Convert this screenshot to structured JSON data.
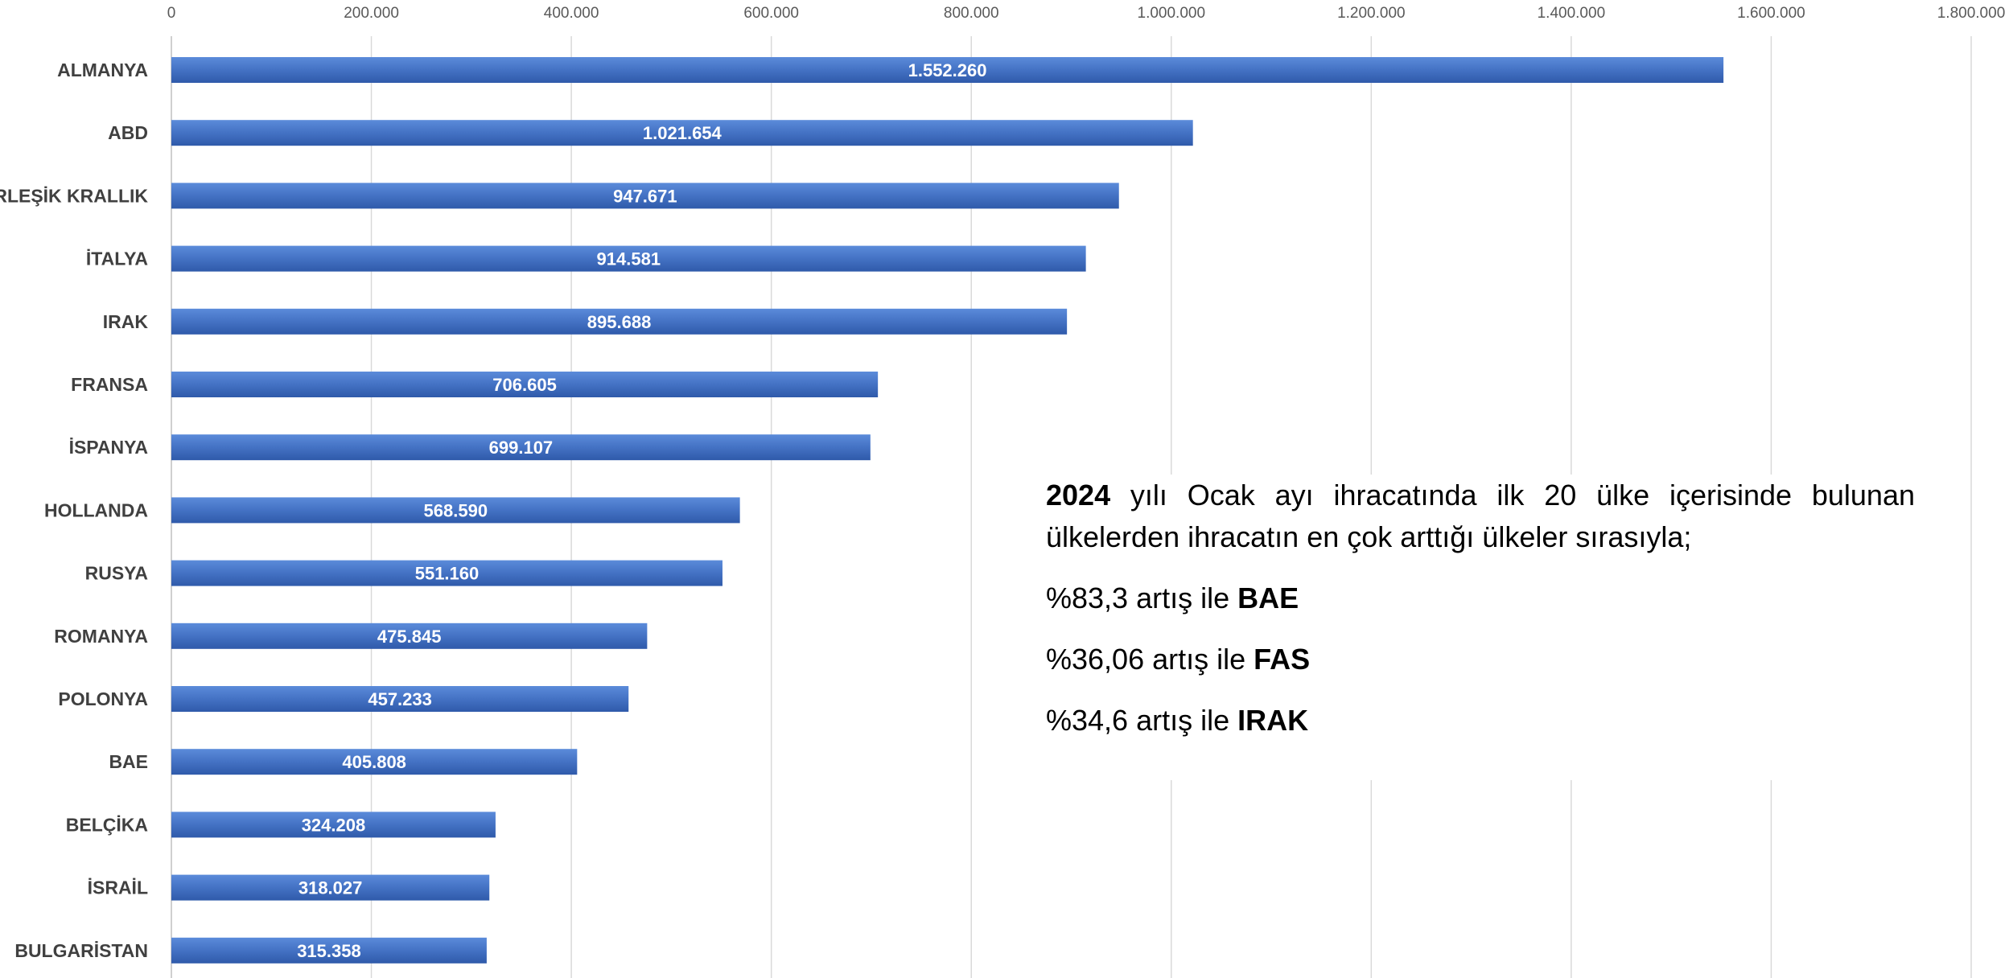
{
  "chart_data": {
    "type": "bar",
    "orientation": "horizontal",
    "categories": [
      "ALMANYA",
      "ABD",
      "BİRLEŞİK KRALLIK",
      "İTALYA",
      "IRAK",
      "FRANSA",
      "İSPANYA",
      "HOLLANDA",
      "RUSYA",
      "ROMANYA",
      "POLONYA",
      "BAE",
      "BELÇİKA",
      "İSRAİL",
      "BULGARİSTAN"
    ],
    "values": [
      1552260,
      1021654,
      947671,
      914581,
      895688,
      706605,
      699107,
      568590,
      551160,
      475845,
      457233,
      405808,
      324208,
      318027,
      315358
    ],
    "value_labels": [
      "1.552.260",
      "1.021.654",
      "947.671",
      "914.581",
      "895.688",
      "706.605",
      "699.107",
      "568.590",
      "551.160",
      "475.845",
      "457.233",
      "405.808",
      "324.208",
      "318.027",
      "315.358"
    ],
    "xlim": [
      0,
      1800000
    ],
    "x_ticks": [
      0,
      200000,
      400000,
      600000,
      800000,
      1000000,
      1200000,
      1400000,
      1600000,
      1800000
    ],
    "x_tick_labels": [
      "0",
      "200.000",
      "400.000",
      "600.000",
      "800.000",
      "1.000.000",
      "1.200.000",
      "1.400.000",
      "1.600.000",
      "1.800.000"
    ],
    "axis_position": "top",
    "grid": true,
    "bar_color": "#4472C4"
  },
  "note": {
    "year": "2024",
    "intro_rest": " yılı Ocak ayı ihracatında ilk 20 ülke içerisinde bulunan ülkelerden ihracatın en çok arttığı ülkeler sırasıyla;",
    "items": [
      {
        "prefix": "%83,3 artış ile ",
        "country": "BAE"
      },
      {
        "prefix": "%36,06 artış ile ",
        "country": "FAS"
      },
      {
        "prefix": "%34,6 artış ile ",
        "country": "IRAK"
      }
    ]
  }
}
